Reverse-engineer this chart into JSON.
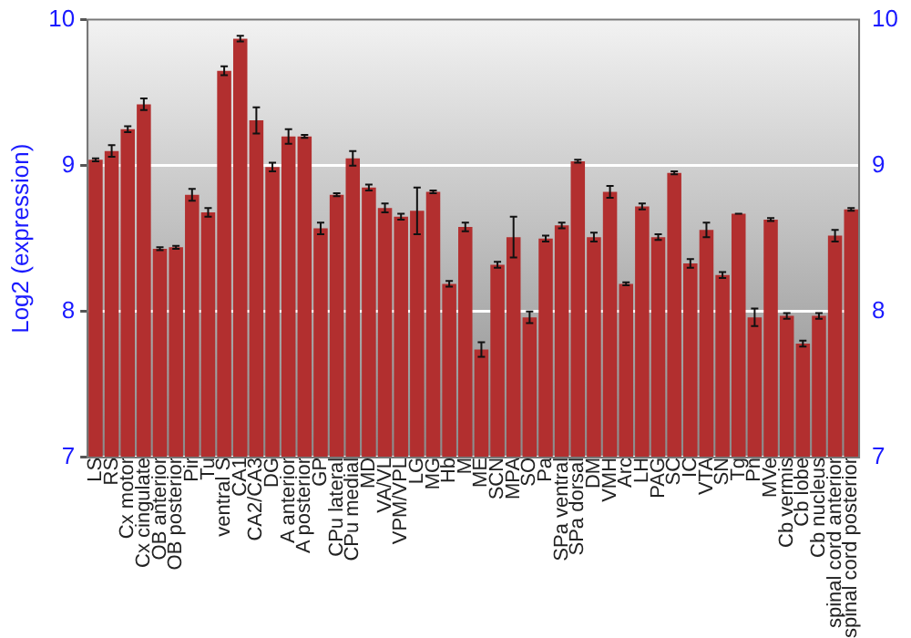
{
  "chart_data": {
    "type": "bar",
    "ylabel": "Log2 (expression)",
    "categories": [
      "LS",
      "RS",
      "Cx motor",
      "Cx cingulate",
      "OB anterior",
      "OB posterior",
      "Pir",
      "Tu",
      "ventral S",
      "CA1",
      "CA2/CA3",
      "DG",
      "A anterior",
      "A posterior",
      "GP",
      "CPu lateral",
      "CPu medial",
      "MD",
      "VA/VL",
      "VPM/VPL",
      "LG",
      "MG",
      "Hb",
      "M",
      "ME",
      "SCN",
      "MPA",
      "SO",
      "Pa",
      "SPa ventral",
      "SPa dorsal",
      "DM",
      "VMH",
      "Arc",
      "LH",
      "PAG",
      "SC",
      "IC",
      "VTA",
      "SN",
      "Tg",
      "Pn",
      "MVe",
      "Cb vermis",
      "Cb lobe",
      "Cb nucleus",
      "spinal cord anterior",
      "spinal cord posterior"
    ],
    "values": [
      9.04,
      9.1,
      9.25,
      9.42,
      8.43,
      8.44,
      8.8,
      8.68,
      9.65,
      9.87,
      9.31,
      8.99,
      9.2,
      9.2,
      8.57,
      8.8,
      9.05,
      8.85,
      8.71,
      8.65,
      8.69,
      8.82,
      8.19,
      8.58,
      7.74,
      8.32,
      8.51,
      7.96,
      8.5,
      8.59,
      9.03,
      8.51,
      8.82,
      8.19,
      8.72,
      8.51,
      8.95,
      8.33,
      8.56,
      8.25,
      8.67,
      7.96,
      8.63,
      7.97,
      7.78,
      7.97,
      8.52,
      8.7
    ],
    "errors": [
      0.01,
      0.04,
      0.02,
      0.04,
      0.01,
      0.01,
      0.04,
      0.03,
      0.03,
      0.02,
      0.09,
      0.03,
      0.05,
      0.01,
      0.04,
      0.01,
      0.05,
      0.02,
      0.03,
      0.02,
      0.16,
      0.01,
      0.02,
      0.03,
      0.05,
      0.02,
      0.14,
      0.04,
      0.02,
      0.02,
      0.01,
      0.03,
      0.04,
      0.01,
      0.02,
      0.02,
      0.01,
      0.03,
      0.05,
      0.02,
      0,
      0.06,
      0.01,
      0.02,
      0.02,
      0.02,
      0.04,
      0.01
    ],
    "color": "#b22f2f",
    "ylim": [
      7,
      10
    ],
    "yticks": [
      7,
      8,
      9,
      10
    ],
    "y2lim": [
      7,
      10
    ],
    "y2ticks": [
      7,
      8,
      9,
      10
    ],
    "grid": "y",
    "legend": false
  }
}
